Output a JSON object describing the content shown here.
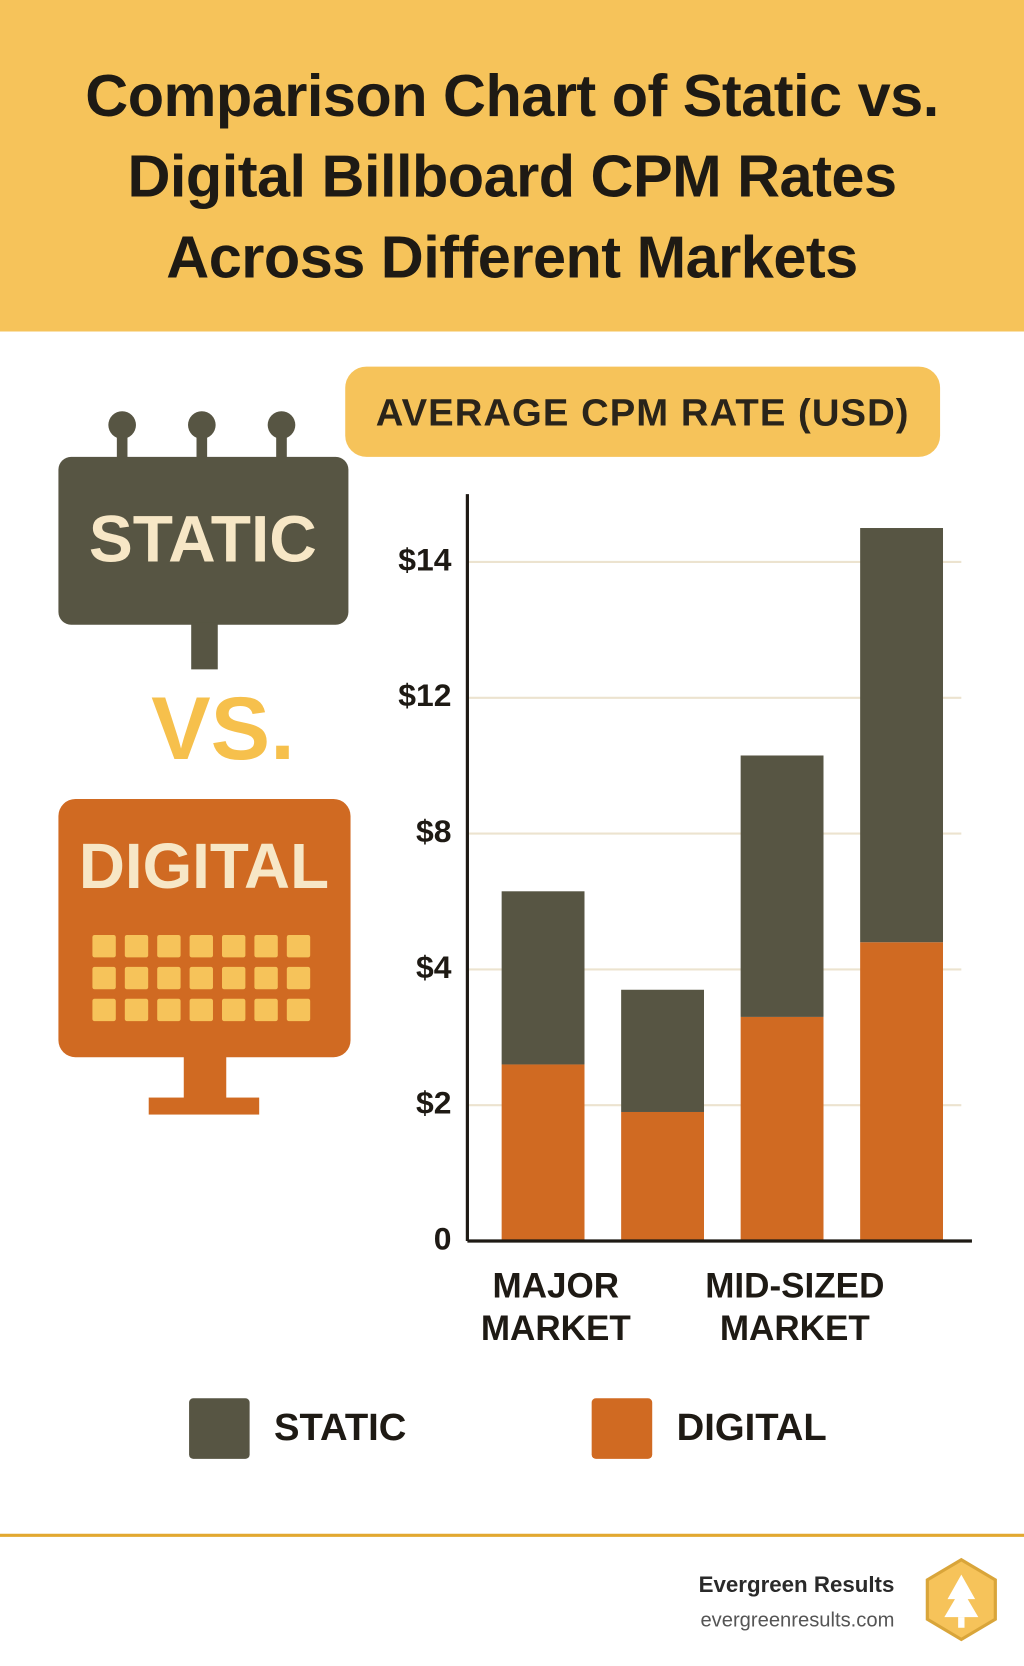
{
  "header": {
    "title": "Comparison Chart of Static vs. Digital Billboard CPM Rates Across Different Markets"
  },
  "illustration": {
    "static": "STATIC",
    "vs": "VS.",
    "digital": "DIGITAL"
  },
  "chart_data": {
    "type": "bar",
    "stacked": true,
    "y_label": "AVERAGE CPM RATE (USD)",
    "categories": [
      "MAJOR MARKET",
      null,
      "MID-SIZED MARKET",
      null
    ],
    "series": [
      {
        "name": "STATIC",
        "color": "#575543",
        "values": [
          3.7,
          1.8,
          7.0,
          9.7
        ]
      },
      {
        "name": "DIGITAL",
        "color": "#d06a22",
        "values": [
          2.6,
          1.9,
          3.3,
          4.8
        ]
      }
    ],
    "ylim": [
      0,
      15
    ],
    "yticks": [
      0,
      {
        "value": 2,
        "label": "$2"
      },
      {
        "value": 4,
        "label": "$4"
      },
      {
        "value": 8,
        "label": "$8"
      },
      {
        "value": 12,
        "label": "$12"
      },
      {
        "value": 14,
        "label": "$14"
      }
    ],
    "grid": true
  },
  "footer": {
    "brand": "Evergreen Results",
    "url": "evergreenresults.com"
  }
}
